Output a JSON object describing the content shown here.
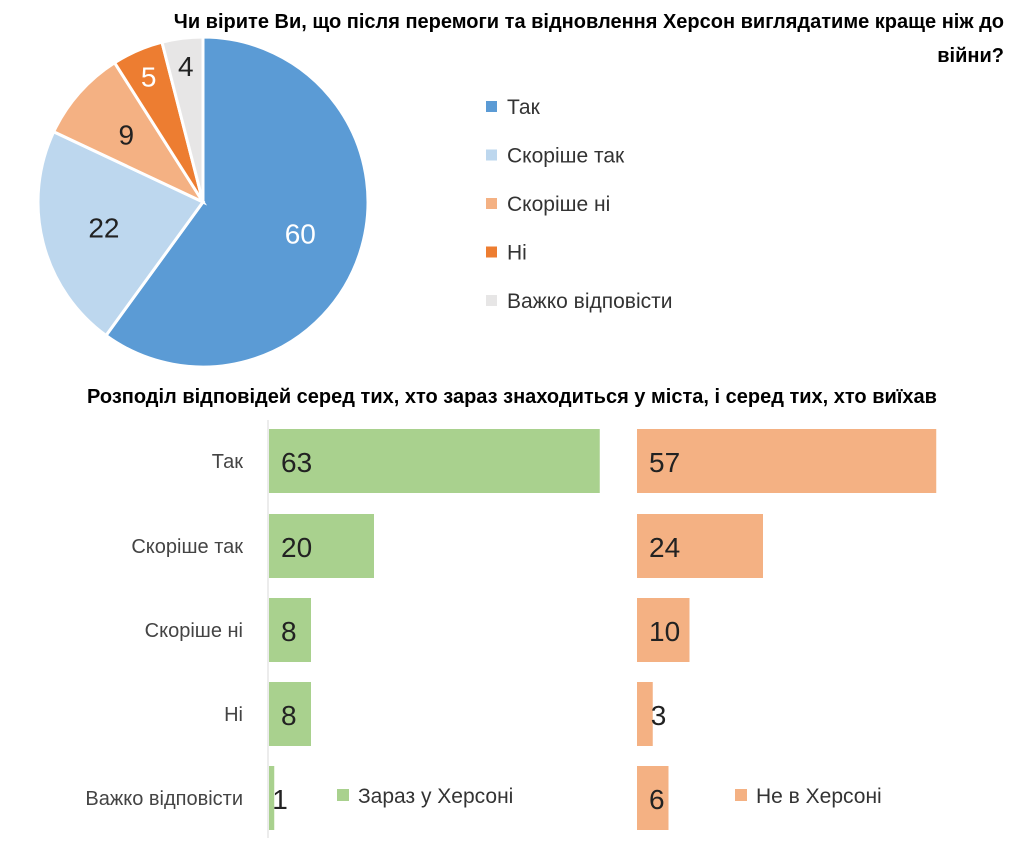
{
  "chart_data": [
    {
      "type": "pie",
      "title": "Чи вірите Ви, що після перемоги та відновлення Херсон виглядатиме краще ніж до війни?",
      "title_lines": [
        "Чи вірите Ви, що після перемоги та відновлення Херсон виглядатиме краще ніж до",
        "війни?"
      ],
      "labels": [
        "Так",
        "Скоріше так",
        "Скоріше ні",
        "Ні",
        "Важко відповісти"
      ],
      "values": [
        60,
        22,
        9,
        5,
        4
      ],
      "colors": [
        "#5b9bd5",
        "#bdd7ee",
        "#f4b183",
        "#ed7d31",
        "#e7e6e6"
      ],
      "legend": "right"
    },
    {
      "type": "bar",
      "orientation": "horizontal",
      "title": "Розподіл відповідей серед тих, хто зараз знаходиться у міста, і серед тих, хто виїхав",
      "categories": [
        "Так",
        "Скоріше так",
        "Скоріше ні",
        "Ні",
        "Важко відповісти"
      ],
      "series": [
        {
          "name": "Зараз у Херсоні",
          "values": [
            63,
            20,
            8,
            8,
            1
          ],
          "color": "#a9d18e"
        },
        {
          "name": "Не в Херсоні",
          "values": [
            57,
            24,
            10,
            3,
            6
          ],
          "color": "#f4b183"
        }
      ]
    }
  ]
}
